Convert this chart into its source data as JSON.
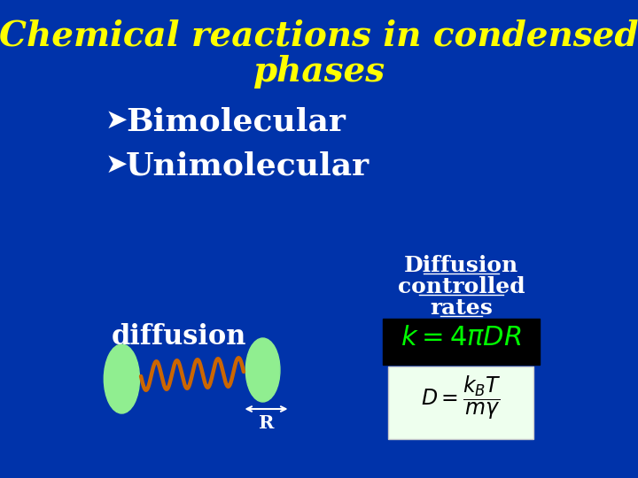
{
  "bg_color": "#0033AA",
  "title_line1": "Chemical reactions in condensed",
  "title_line2": "phases",
  "title_color": "#FFFF00",
  "title_fontsize": 28,
  "bullet_color": "#FFFFFF",
  "bullet_fontsize": 26,
  "diffusion_label": "diffusion",
  "diffusion_color": "#FFFFFF",
  "diffusion_fontsize": 22,
  "dc_line1": "Diffusion",
  "dc_line2": "controlled",
  "dc_line3": "rates",
  "dc_color": "#FFFFFF",
  "dc_fontsize": 18,
  "eq1_color": "#00FF00",
  "eq1_bg": "#000000",
  "eq2_bg": "#EEFFEE",
  "molecule_color": "#90EE90",
  "path_color": "#CC6600",
  "r_label": "R",
  "r_color": "#FFFFFF",
  "arrow_symbol": "➤"
}
